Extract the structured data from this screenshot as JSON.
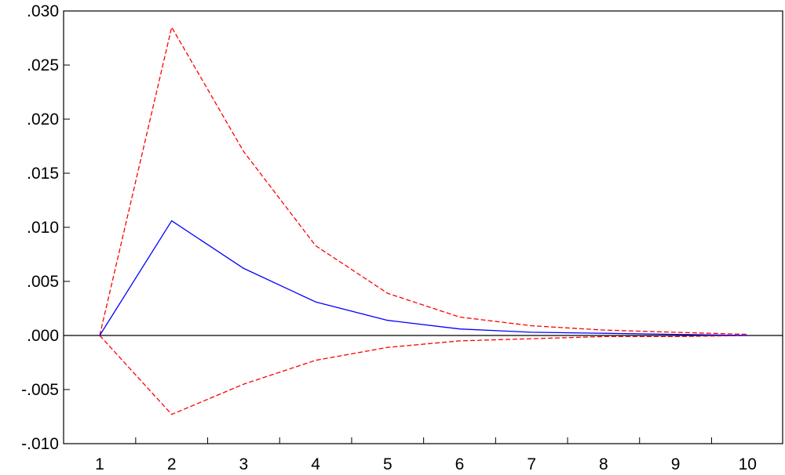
{
  "chart_data": {
    "type": "line",
    "title": "",
    "xlabel": "",
    "ylabel": "",
    "x": [
      1,
      2,
      3,
      4,
      5,
      6,
      7,
      8,
      9,
      10
    ],
    "x_tick_labels": [
      "1",
      "2",
      "3",
      "4",
      "5",
      "6",
      "7",
      "8",
      "9",
      "10"
    ],
    "ylim": [
      -0.01,
      0.03
    ],
    "y_ticks": [
      0.03,
      0.025,
      0.02,
      0.015,
      0.01,
      0.005,
      0.0,
      -0.005,
      -0.01
    ],
    "y_tick_labels": [
      ".030",
      ".025",
      ".020",
      ".015",
      ".010",
      ".005",
      ".000",
      "-.005",
      "-.010"
    ],
    "zero_line": true,
    "grid": false,
    "series": [
      {
        "role": "response",
        "style": "solid",
        "color": "#0000ff",
        "values": [
          0.0,
          0.0106,
          0.0062,
          0.0031,
          0.0014,
          0.0006,
          0.0003,
          0.0002,
          0.0001,
          0.0
        ]
      },
      {
        "role": "upper-band",
        "style": "dashed",
        "color": "#ff0000",
        "values": [
          0.0,
          0.0285,
          0.017,
          0.0083,
          0.0039,
          0.0017,
          0.0009,
          0.0005,
          0.0003,
          0.0001
        ]
      },
      {
        "role": "lower-band",
        "style": "dashed",
        "color": "#ff0000",
        "values": [
          0.0,
          -0.0073,
          -0.0045,
          -0.0023,
          -0.0011,
          -0.0005,
          -0.0003,
          -0.0001,
          -0.0001,
          0.0
        ]
      }
    ],
    "colors": {
      "axis": "#000000",
      "response": "#0000ff",
      "band": "#ff0000"
    }
  }
}
